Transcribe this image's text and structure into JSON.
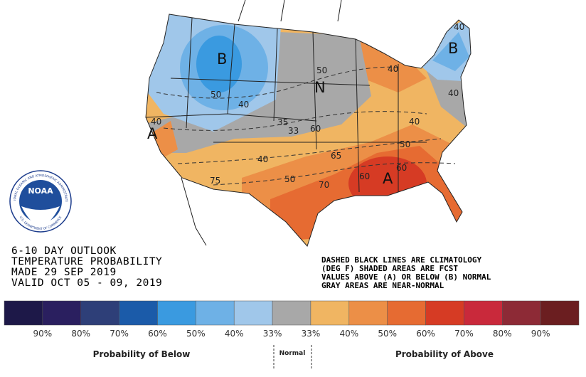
{
  "map_labels": {
    "letters": [
      "B",
      "B",
      "N",
      "A",
      "A"
    ],
    "numbers": [
      "40",
      "50",
      "40",
      "35",
      "33",
      "60",
      "50",
      "40",
      "40",
      "40",
      "50",
      "65",
      "75",
      "50",
      "70",
      "60",
      "60",
      "40",
      "40"
    ]
  },
  "logo": {
    "name": "NOAA",
    "ring_top": "NATIONAL OCEANIC AND ATMOSPHERIC ADMINISTRATION",
    "ring_bottom": "U.S. DEPARTMENT OF COMMERCE"
  },
  "outlook": [
    "6-10 DAY OUTLOOK",
    "TEMPERATURE PROBABILITY",
    "MADE  29 SEP 2019",
    "VALID  OCT 05 - 09, 2019"
  ],
  "notes": [
    "DASHED BLACK LINES ARE CLIMATOLOGY",
    "(DEG F) SHADED AREAS ARE FCST",
    "VALUES ABOVE (A) OR BELOW (B) NORMAL",
    "GRAY AREAS ARE NEAR-NORMAL"
  ],
  "legend": {
    "colors": [
      "#1d1848",
      "#2a1f5f",
      "#2e3f78",
      "#1b5ba9",
      "#3a9ae0",
      "#6eb1e6",
      "#a0c7ea",
      "#a8a8a8",
      "#f0b562",
      "#ec8f47",
      "#e66b32",
      "#d63b24",
      "#c9293b",
      "#8d2a36",
      "#6b1e20"
    ],
    "labels": [
      "90%",
      "80%",
      "70%",
      "60%",
      "50%",
      "40%",
      "33%",
      "33%",
      "40%",
      "50%",
      "60%",
      "70%",
      "80%",
      "90%"
    ],
    "below": "Probability of Below",
    "normal": "Normal",
    "above": "Probability of Above"
  }
}
